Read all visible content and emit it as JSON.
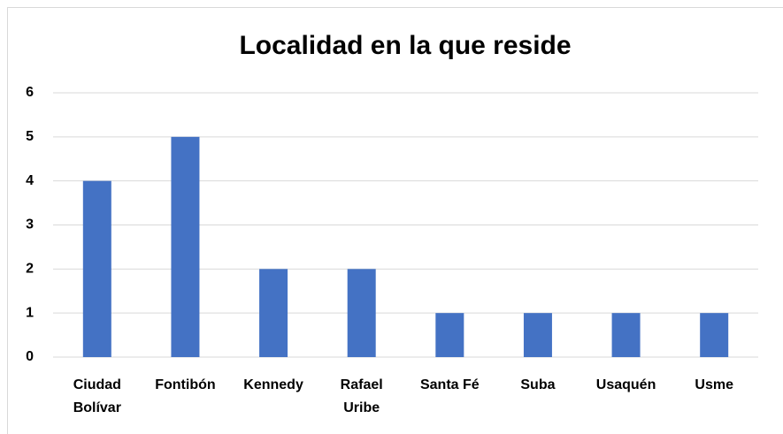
{
  "chart_data": {
    "type": "bar",
    "title": "Localidad en la que reside",
    "categories": [
      "Ciudad Bolívar",
      "Fontibón",
      "Kennedy",
      "Rafael Uribe",
      "Santa Fé",
      "Suba",
      "Usaquén",
      "Usme"
    ],
    "values": [
      4,
      5,
      2,
      2,
      1,
      1,
      1,
      1
    ],
    "color": "#4472c4",
    "ylim": [
      0,
      6
    ],
    "yticks": [
      0,
      1,
      2,
      3,
      4,
      5,
      6
    ],
    "grid": true
  }
}
